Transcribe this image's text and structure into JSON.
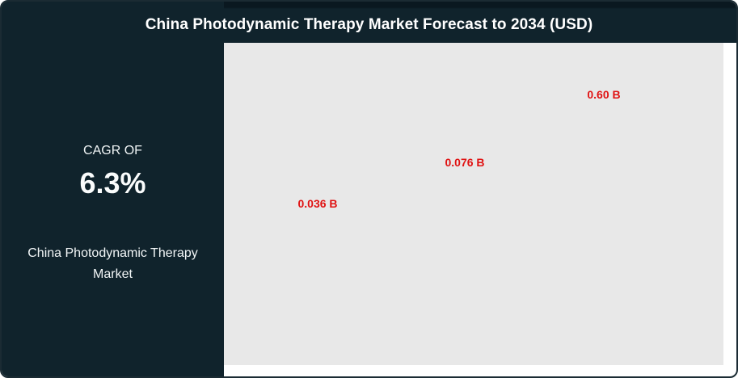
{
  "header": {
    "title": "China Photodynamic Therapy Market Forecast to 2034 (USD)"
  },
  "sidebar": {
    "cagr_label": "CAGR OF",
    "cagr_value": "6.3%",
    "market_name": "China Photodynamic Therapy Market"
  },
  "colors": {
    "panel_dark": "#10232c",
    "plot_background": "#e8e8e8",
    "value_label_red": "#e01212",
    "text_light": "#f2f6f7"
  },
  "chart_data": {
    "type": "bar",
    "title": "China Photodynamic Therapy Market Forecast to 2034 (USD)",
    "unit": "USD billions",
    "values": [
      0.036,
      0.076,
      0.6
    ],
    "labels": [
      "0.036 B",
      "0.076 B",
      "0.60 B"
    ],
    "cagr": "6.3%",
    "axes_visible": false,
    "bars_visible": false,
    "gridlines": false,
    "legend": "none",
    "label_color": "#e01212",
    "note": "Only the red data labels are rendered in the plot area; bars, axes and tick labels are not visible in the screenshot"
  }
}
